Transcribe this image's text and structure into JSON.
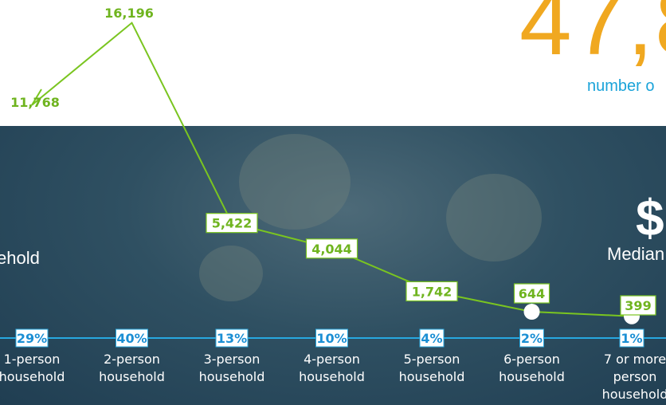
{
  "headline": {
    "value": "47,8",
    "caption": "number o"
  },
  "left_label": "ehold",
  "right_panel": {
    "symbol": "$",
    "label": "Median"
  },
  "colors": {
    "count_line": "#7ac520",
    "count_label": "#6fb41f",
    "pct_line": "#27a8e0",
    "pct_text": "#1b8fd4",
    "headline": "#f0a820"
  },
  "chart_data": {
    "type": "line",
    "categories": [
      [
        "1-person",
        "household"
      ],
      [
        "2-person",
        "household"
      ],
      [
        "3-person",
        "household"
      ],
      [
        "4-person",
        "household"
      ],
      [
        "5-person",
        "household"
      ],
      [
        "6-person",
        "household"
      ],
      [
        "7 or more",
        "person",
        "household"
      ]
    ],
    "series": [
      {
        "values": [
          11768,
          16196,
          5422,
          4044,
          1742,
          644,
          399
        ],
        "labels": [
          "11,768",
          "16,196",
          "5,422",
          "4,044",
          "1,742",
          "644",
          "399"
        ]
      },
      {
        "values": [
          29,
          40,
          13,
          10,
          4,
          2,
          1
        ],
        "labels": [
          "29%",
          "40%",
          "13%",
          "10%",
          "4%",
          "2%",
          "1%"
        ]
      }
    ]
  }
}
